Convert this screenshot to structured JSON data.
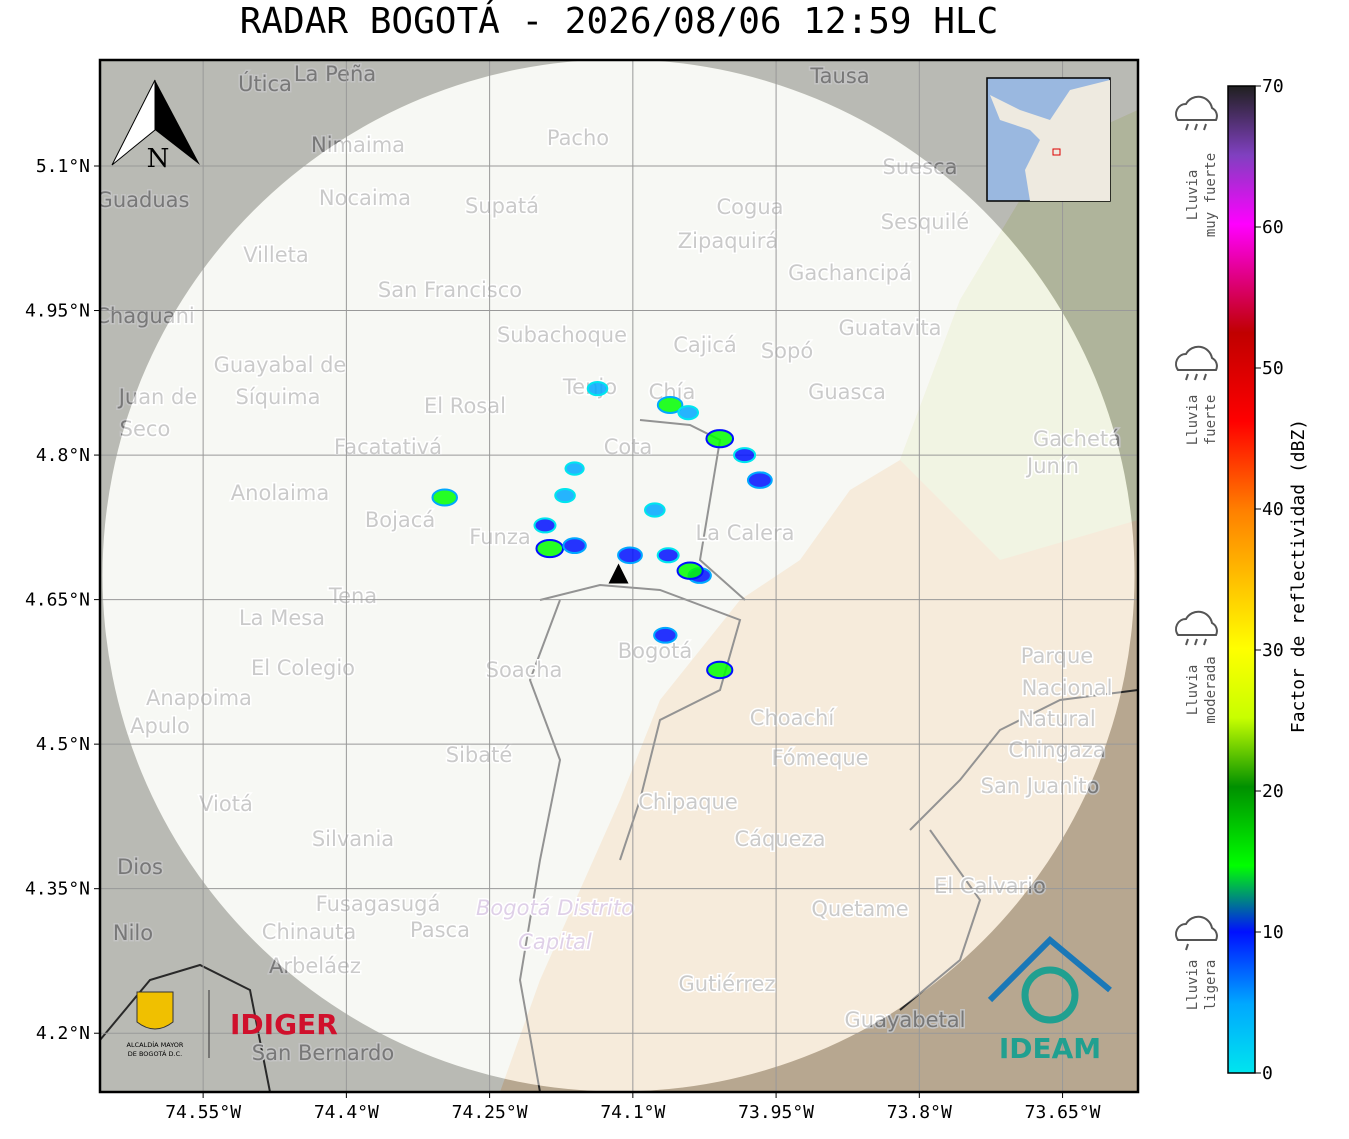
{
  "title": "RADAR BOGOTÁ - 2026/08/06 12:59 HLC",
  "map": {
    "xlim": [
      -74.658,
      -73.571
    ],
    "ylim": [
      4.139,
      5.21
    ],
    "xticks": [
      {
        "value": -74.55,
        "label": "74.55°W"
      },
      {
        "value": -74.4,
        "label": "74.4°W"
      },
      {
        "value": -74.25,
        "label": "74.25°W"
      },
      {
        "value": -74.1,
        "label": "74.1°W"
      },
      {
        "value": -73.95,
        "label": "73.95°W"
      },
      {
        "value": -73.8,
        "label": "73.8°W"
      },
      {
        "value": -73.65,
        "label": "73.65°W"
      }
    ],
    "yticks": [
      {
        "value": 5.1,
        "label": "5.1°N"
      },
      {
        "value": 4.95,
        "label": "4.95°N"
      },
      {
        "value": 4.8,
        "label": "4.8°N"
      },
      {
        "value": 4.65,
        "label": "4.65°N"
      },
      {
        "value": 4.5,
        "label": "4.5°N"
      },
      {
        "value": 4.35,
        "label": "4.35°N"
      },
      {
        "value": 4.2,
        "label": "4.2°N"
      }
    ],
    "grid": true,
    "radar": {
      "lon": -74.115,
      "lat": 4.675
    },
    "echoes": {
      "lon": [
        -74.061,
        -74.042,
        -74.009,
        -73.983,
        -73.967,
        -74.161,
        -74.171,
        -74.192,
        -74.187,
        -74.161,
        -74.077,
        -74.063,
        -74.03,
        -74.04,
        -74.103,
        -74.066,
        -74.009,
        -74.297,
        -74.137
      ],
      "lat": [
        4.852,
        4.844,
        4.817,
        4.8,
        4.774,
        4.786,
        4.758,
        4.727,
        4.703,
        4.706,
        4.743,
        4.696,
        4.675,
        4.68,
        4.696,
        4.613,
        4.577,
        4.756,
        4.869
      ],
      "dbz": [
        15,
        8,
        18,
        10,
        14,
        6,
        8,
        10,
        18,
        12,
        8,
        10,
        12,
        16,
        14,
        12,
        16,
        15,
        8
      ]
    },
    "places": [
      "Útica",
      "La Peña",
      "Tausa",
      "Pacho",
      "Nimaima",
      "Suesca",
      "Guaduas",
      "Nocaima",
      "Supatá",
      "Cogua",
      "Sesquilé",
      "Zipaquirá",
      "Villeta",
      "Gachancipá",
      "San Francisco",
      "Chaguani",
      "Guatavita",
      "Subachoque",
      "Cajicá",
      "Sopó",
      "Guayabal de",
      "Síquima",
      "Tenjo",
      "Chía",
      "Guasca",
      "Juan de",
      "El Rosal",
      "Seco",
      "Gachetá",
      "Facatativá",
      "Junín",
      "Anolaima",
      "Bojacá",
      "La Calera",
      "Cota",
      "Funza",
      "Tena",
      "La Mesa",
      "Bogotá",
      "Parque",
      "Soacha",
      "El Colegio",
      "Anapoima",
      "Nacional",
      "Choachí",
      "Apulo",
      "Natural",
      "Chingaza",
      "Fómeque",
      "Sibaté",
      "San Juanito",
      "Chipaque",
      "Viotá",
      "Silvania",
      "Cáqueza",
      "Dios",
      "El Calvario",
      "Fusagasugá",
      "Bogotá Distrito",
      "Quetame",
      "Nilo",
      "Chinauta",
      "Pasca",
      "Capital",
      "Arbeláez",
      "Gutiérrez",
      "Guayabetal",
      "San Bernardo"
    ],
    "north": "N",
    "logos": {
      "idiger": "IDIGER",
      "ideam": "IDEAM",
      "alcaldia": [
        "ALCALDÍA MAYOR",
        "DE BOGOTÁ D.C."
      ]
    }
  },
  "colorbar": {
    "label": "Factor de reflectividad (dBZ)",
    "lim": [
      0,
      70
    ],
    "ticks": [
      0,
      10,
      20,
      30,
      40,
      50,
      60,
      70
    ],
    "levels": [
      [
        "Lluvia",
        "muy fuerte"
      ],
      [
        "Lluvia",
        "fuerte"
      ],
      [
        "Lluvia",
        "moderada"
      ],
      [
        "Lluvia",
        "ligera"
      ]
    ]
  }
}
